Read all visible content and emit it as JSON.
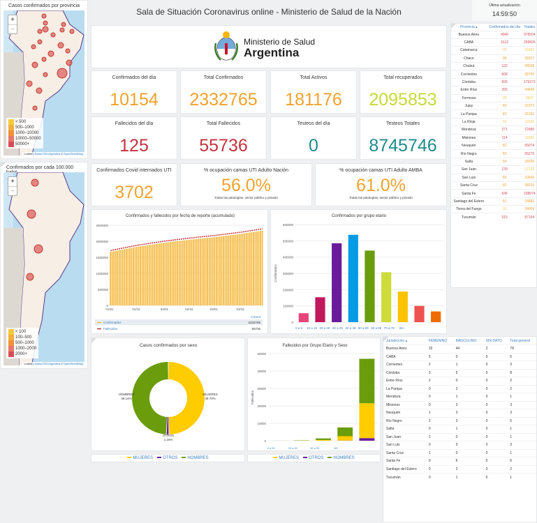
{
  "header": {
    "title": "Sala de Situación Coronavirus online - Ministerio de Salud de la Nación",
    "update_label": "Última actualización",
    "update_time": "14:59:50"
  },
  "logo": {
    "line1": "Ministerio de Salud",
    "line2": "Argentina"
  },
  "maps": [
    {
      "title": "Casos confirmados por provincia",
      "legend": [
        "< 500",
        "500–1000",
        "1000–10000",
        "10000–50000",
        "50000+"
      ],
      "zoom_in": "+",
      "zoom_out": "−"
    },
    {
      "title": "Confirmados por cada 100.000 habit...",
      "legend": [
        "< 100",
        "100–500",
        "500–1000",
        "1000–2000",
        "2000+"
      ],
      "zoom_in": "+",
      "zoom_out": "−"
    }
  ],
  "map_attribution": {
    "leaflet": "Leaflet",
    "sep": " | ",
    "datos": "Datos IGN Argentina",
    "sep2": " // ",
    "osm": "OpenStreetMap"
  },
  "legend_colors": [
    "#f7c93c",
    "#f5ae3c",
    "#f0913a",
    "#e8776a",
    "#d94c5a"
  ],
  "stats": [
    {
      "label": "Confirmados del día",
      "value": "10154",
      "color": "#f2a22c"
    },
    {
      "label": "Total Confirmados",
      "value": "2332765",
      "color": "#f2a22c"
    },
    {
      "label": "Total Activos",
      "value": "181176",
      "color": "#f2a22c"
    },
    {
      "label": "Total recuperados",
      "value": "2095853",
      "color": "#c8d93a"
    },
    {
      "label": "Fallecidos del día",
      "value": "125",
      "color": "#c4323e"
    },
    {
      "label": "Total Fallecidos",
      "value": "55736",
      "color": "#c4323e"
    },
    {
      "label": "Testeos del día",
      "value": "0",
      "color": "#1f8a8a"
    },
    {
      "label": "Testeos Totales",
      "value": "8745746",
      "color": "#1f8a8a"
    }
  ],
  "uti": {
    "label": "Confirmados Covid internados UTI",
    "value": "3702",
    "color": "#f2a22c"
  },
  "occupancy": [
    {
      "label": "% ocupación camas UTI Adulto Nación",
      "value": "56.0%",
      "note": "Todas las patologías, sector público y privado"
    },
    {
      "label": "% ocupación camas UTI Adulto AMBA",
      "value": "61.0%",
      "note": "Todas las patologías, sector público y privado"
    }
  ],
  "province_table": {
    "headers": [
      "Provincia ▴",
      "Confirmados del día",
      "Totales"
    ],
    "rows": [
      [
        "Buenos Aires",
        4940,
        979504
      ],
      [
        "CABA",
        1612,
        259826
      ],
      [
        "Catamarca",
        71,
        15301
      ],
      [
        "Chaco",
        96,
        39317
      ],
      [
        "Chubut",
        132,
        49036
      ],
      [
        "Corrientes",
        606,
        28700
      ],
      [
        "Córdoba",
        826,
        179373
      ],
      [
        "Entre Ríos",
        265,
        49640
      ],
      [
        "Formosa",
        28,
        2602
      ],
      [
        "Jujuy",
        49,
        22373
      ],
      [
        "La Pampa",
        43,
        21291
      ],
      [
        "La Rioja",
        16,
        11626
      ],
      [
        "Mendoza",
        271,
        72486
      ],
      [
        "Misiones",
        114,
        11830
      ],
      [
        "Neuquén",
        82,
        65074
      ],
      [
        "Río Negro",
        83,
        55275
      ],
      [
        "Salta",
        54,
        28206
      ],
      [
        "San Juan",
        139,
        17123
      ],
      [
        "San Luis",
        60,
        22606
      ],
      [
        "Santa Cruz",
        82,
        38216
      ],
      [
        "Santa Fe",
        545,
        238974
      ],
      [
        "Santiago del Estero",
        51,
        24682
      ],
      [
        "Tierra del Fuego",
        10,
        24004
      ],
      [
        "Tucumán",
        515,
        87104
      ]
    ]
  },
  "deaths_table": {
    "headers": [
      "Jurisdicción ▴",
      "FEMENINO",
      "MASCULINO",
      "SIN DATO",
      "Total general"
    ],
    "rows": [
      [
        "Buenos Aires",
        32,
        44,
        2,
        78
      ],
      [
        "CABA",
        5,
        0,
        0,
        5
      ],
      [
        "Corrientes",
        2,
        1,
        0,
        3
      ],
      [
        "Córdoba",
        3,
        5,
        0,
        8
      ],
      [
        "Entre Ríos",
        2,
        0,
        0,
        2
      ],
      [
        "La Pampa",
        0,
        2,
        0,
        2
      ],
      [
        "Mendoza",
        0,
        1,
        0,
        1
      ],
      [
        "Misiones",
        0,
        3,
        0,
        3
      ],
      [
        "Neuquén",
        1,
        2,
        0,
        3
      ],
      [
        "Río Negro",
        2,
        3,
        0,
        5
      ],
      [
        "Salta",
        0,
        1,
        0,
        1
      ],
      [
        "San Juan",
        1,
        0,
        0,
        1
      ],
      [
        "San Luis",
        0,
        3,
        0,
        3
      ],
      [
        "Santa Cruz",
        1,
        0,
        0,
        1
      ],
      [
        "Santa Fe",
        0,
        6,
        0,
        6
      ],
      [
        "Santiago del Estero",
        0,
        2,
        0,
        2
      ],
      [
        "Tucumán",
        0,
        1,
        0,
        1
      ]
    ]
  },
  "chart_data": [
    {
      "type": "bar",
      "title": "Confirmados y fallecidos por fecha de reporte (acumulado)",
      "stacked": true,
      "x": [
        "01/01",
        "01/16",
        "02/01",
        "02/15",
        "03/01",
        "03/16",
        "03/28"
      ],
      "xticks": [
        "01/01",
        "01/16",
        "02/01",
        "02/15",
        "03/01",
        "03/16"
      ],
      "series": [
        {
          "name": "Confirmados",
          "values": [
            1670000,
            1830000,
            1960000,
            2050000,
            2130000,
            2230000,
            2332765
          ],
          "color": "#f5b93f"
        },
        {
          "name": "Fallecidos",
          "values": [
            43000,
            46000,
            48500,
            50500,
            52000,
            54000,
            55736
          ],
          "color": "#c4323e"
        }
      ],
      "ylim": [
        0,
        2500000
      ],
      "yticks": [
        0,
        500000,
        1000000,
        1500000,
        2000000,
        2500000
      ],
      "legend_header": "current",
      "legend_values": [
        "2332765",
        "55736"
      ],
      "legend": "bottom",
      "grid": true
    },
    {
      "type": "bar",
      "title": "Confirmados por grupo etario",
      "ylabel": "Confirmados",
      "categories": [
        "0 a 9",
        "10 a 19",
        "20 a 29",
        "30 a 39",
        "40 a 49",
        "50 a 59",
        "60 a 69",
        "70 a 79",
        "80+"
      ],
      "values": [
        55000,
        153000,
        485000,
        537000,
        440000,
        307000,
        188000,
        100000,
        66000
      ],
      "colors": [
        "#e8447a",
        "#c2185b",
        "#6a1b9a",
        "#039be5",
        "#6a9c0c",
        "#cddc39",
        "#fbc300",
        "#ef5350",
        "#ef6c00"
      ],
      "ylim": [
        0,
        600000
      ],
      "yticks": [
        0,
        100000,
        200000,
        300000,
        400000,
        500000,
        600000
      ],
      "grid": true
    },
    {
      "type": "pie",
      "title": "Casos confirmados por sexo",
      "donut": true,
      "categories": [
        "MUJERES",
        "OTROS",
        "HOMBRES"
      ],
      "values": [
        49.7,
        1.16,
        49.14
      ],
      "labels": [
        "49.70%",
        "1.16%",
        "49.14%"
      ],
      "colors": [
        "#ffcc00",
        "#6a1b9a",
        "#6a9c0c"
      ],
      "legend": "bottom"
    },
    {
      "type": "bar",
      "title": "Fallecidos por Grupo Etario y Sexo",
      "ylabel": "Fallecidos",
      "stacked": true,
      "categories": [
        "0 a 19",
        "20 a 39",
        "40 a 59",
        "60+",
        ""
      ],
      "series": [
        {
          "name": "MUJERES",
          "values": [
            10,
            100,
            400,
            2500,
            20000
          ],
          "color": "#ffcc00"
        },
        {
          "name": "OTROS",
          "values": [
            0,
            5,
            20,
            100,
            1500
          ],
          "color": "#6a1b9a"
        },
        {
          "name": "HOMBRES",
          "values": [
            15,
            150,
            900,
            5000,
            25500
          ],
          "color": "#6a9c0c"
        }
      ],
      "ylim": [
        0,
        50000
      ],
      "yticks": [
        0,
        10000,
        20000,
        30000,
        40000,
        50000
      ],
      "legend": "bottom",
      "grid": true
    }
  ]
}
